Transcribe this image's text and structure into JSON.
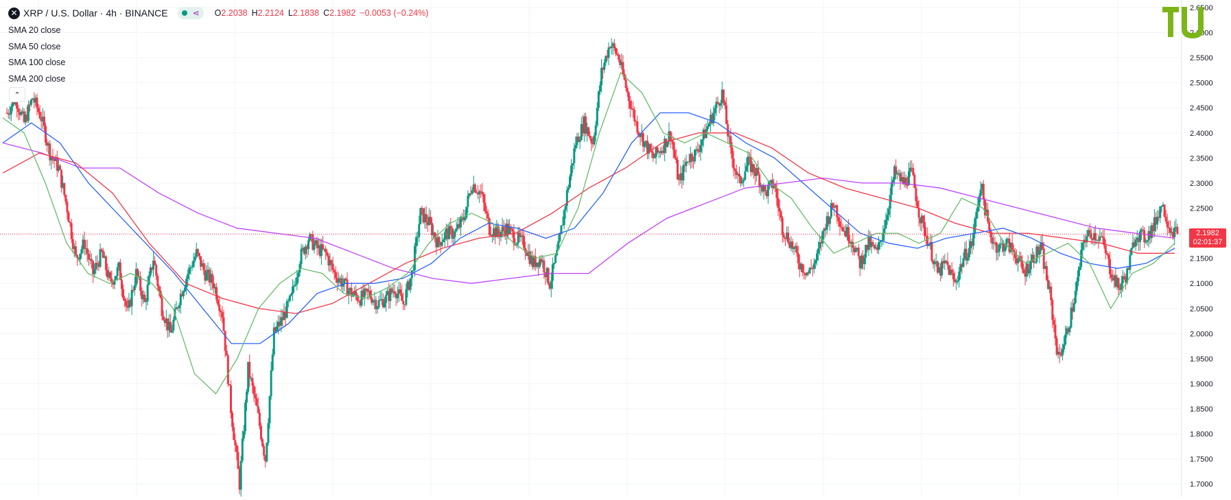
{
  "header": {
    "symbol_icon": "xrp-logo-icon",
    "title": "XRP / U.S. Dollar · 4h · BINANCE",
    "status_icon": "market-open-dot-icon",
    "share_icon": "share-icon",
    "ohlc": {
      "o_label": "O",
      "o_value": "2.2038",
      "h_label": "H",
      "h_value": "2.2124",
      "l_label": "L",
      "l_value": "2.1838",
      "c_label": "C",
      "c_value": "2.1982",
      "change": "−0.0053 (−0.24%)"
    }
  },
  "legend": [
    "SMA 20 close",
    "SMA 50 close",
    "SMA 100 close",
    "SMA 200 close"
  ],
  "collapse_icon": "chevron-up-icon",
  "logo_icon": "tu-logo-icon",
  "current_price": {
    "value": "2.1982",
    "countdown": "02:01:37"
  },
  "colors": {
    "up": "#089981",
    "down": "#f23645",
    "sma20": "#66bb6a",
    "sma50": "#2962ff",
    "sma100": "#f23645",
    "sma200": "#bf40ff",
    "logo": "#7cb518"
  },
  "chart_data": {
    "type": "candlestick",
    "y_ticks": [
      "2.6500",
      "2.6000",
      "2.5500",
      "2.5000",
      "2.4500",
      "2.4000",
      "2.3500",
      "2.3000",
      "2.2500",
      "2.2000",
      "2.1500",
      "2.1000",
      "2.0500",
      "2.0000",
      "1.9500",
      "1.9000",
      "1.8500",
      "1.8000",
      "1.7500",
      "1.7000"
    ],
    "ylim": [
      1.675,
      2.665
    ],
    "last_close": 2.1982,
    "grid": true,
    "candle_path": [
      2.44,
      2.47,
      2.42,
      2.47,
      2.43,
      2.36,
      2.33,
      2.25,
      2.15,
      2.18,
      2.12,
      2.16,
      2.1,
      2.13,
      2.04,
      2.12,
      2.06,
      2.15,
      2.05,
      2.0,
      2.07,
      2.12,
      2.16,
      2.12,
      2.1,
      2.04,
      1.85,
      1.7,
      1.93,
      1.85,
      1.75,
      2.0,
      2.03,
      2.07,
      2.15,
      2.19,
      2.17,
      2.16,
      2.12,
      2.1,
      2.08,
      2.07,
      2.08,
      2.06,
      2.07,
      2.09,
      2.06,
      2.12,
      2.24,
      2.22,
      2.18,
      2.2,
      2.2,
      2.23,
      2.3,
      2.28,
      2.21,
      2.2,
      2.21,
      2.19,
      2.18,
      2.14,
      2.15,
      2.1,
      2.17,
      2.28,
      2.38,
      2.42,
      2.38,
      2.52,
      2.58,
      2.55,
      2.48,
      2.42,
      2.38,
      2.35,
      2.37,
      2.4,
      2.3,
      2.35,
      2.36,
      2.4,
      2.44,
      2.48,
      2.36,
      2.3,
      2.34,
      2.32,
      2.28,
      2.3,
      2.21,
      2.18,
      2.14,
      2.12,
      2.15,
      2.22,
      2.26,
      2.21,
      2.19,
      2.14,
      2.18,
      2.16,
      2.23,
      2.32,
      2.3,
      2.32,
      2.23,
      2.18,
      2.12,
      2.14,
      2.1,
      2.15,
      2.18,
      2.3,
      2.2,
      2.17,
      2.18,
      2.16,
      2.12,
      2.15,
      2.17,
      2.08,
      1.95,
      2.0,
      2.08,
      2.19,
      2.2,
      2.19,
      2.13,
      2.09,
      2.12,
      2.2,
      2.19,
      2.21,
      2.26,
      2.21,
      2.198
    ],
    "candles_per_step": 6,
    "sma_lines": {
      "sma20": [
        2.43,
        2.4,
        2.3,
        2.18,
        2.12,
        2.1,
        2.12,
        2.1,
        2.05,
        1.92,
        1.88,
        1.95,
        2.05,
        2.1,
        2.13,
        2.12,
        2.08,
        2.07,
        2.09,
        2.12,
        2.18,
        2.22,
        2.24,
        2.22,
        2.18,
        2.15,
        2.16,
        2.25,
        2.4,
        2.52,
        2.48,
        2.4,
        2.38,
        2.4,
        2.38,
        2.36,
        2.3,
        2.27,
        2.21,
        2.16,
        2.18,
        2.2,
        2.2,
        2.18,
        2.2,
        2.27,
        2.25,
        2.18,
        2.14,
        2.16,
        2.18,
        2.14,
        2.05,
        2.12,
        2.14,
        2.18
      ],
      "sma50": [
        2.38,
        2.42,
        2.38,
        2.3,
        2.24,
        2.18,
        2.12,
        2.05,
        1.98,
        1.98,
        2.02,
        2.08,
        2.1,
        2.1,
        2.11,
        2.14,
        2.19,
        2.22,
        2.21,
        2.19,
        2.21,
        2.28,
        2.38,
        2.44,
        2.44,
        2.42,
        2.38,
        2.35,
        2.3,
        2.25,
        2.2,
        2.18,
        2.17,
        2.19,
        2.2,
        2.21,
        2.19,
        2.16,
        2.14,
        2.13,
        2.14,
        2.17
      ],
      "sma100": [
        2.32,
        2.36,
        2.34,
        2.28,
        2.18,
        2.1,
        2.07,
        2.05,
        2.04,
        2.06,
        2.1,
        2.14,
        2.17,
        2.19,
        2.2,
        2.24,
        2.29,
        2.33,
        2.38,
        2.4,
        2.4,
        2.37,
        2.32,
        2.29,
        2.27,
        2.25,
        2.22,
        2.2,
        2.2,
        2.19,
        2.18,
        2.16,
        2.16
      ],
      "sma200": [
        2.38,
        2.36,
        2.33,
        2.33,
        2.28,
        2.24,
        2.21,
        2.2,
        2.19,
        2.16,
        2.13,
        2.11,
        2.1,
        2.11,
        2.12,
        2.12,
        2.18,
        2.23,
        2.26,
        2.29,
        2.3,
        2.31,
        2.3,
        2.3,
        2.29,
        2.27,
        2.25,
        2.23,
        2.21,
        2.2,
        2.19
      ]
    }
  }
}
